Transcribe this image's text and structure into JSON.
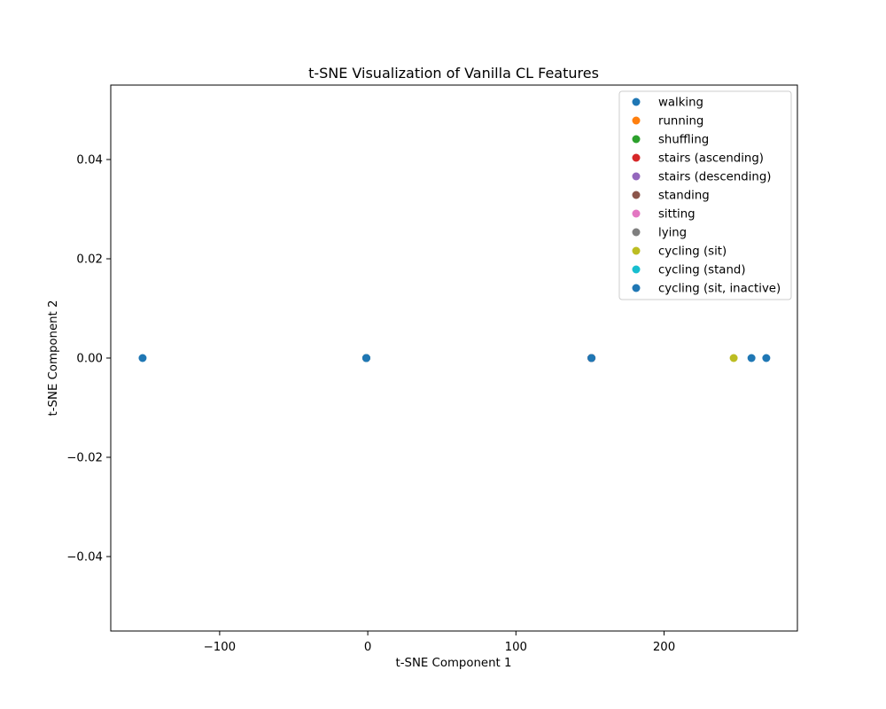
{
  "chart_data": {
    "type": "scatter",
    "title": "t-SNE Visualization of Vanilla CL Features",
    "xlabel": "t-SNE Component 1",
    "ylabel": "t-SNE Component 2",
    "xlim": [
      -173.5,
      290.0
    ],
    "ylim": [
      -0.055,
      0.055
    ],
    "xticks": [
      -100,
      0,
      100,
      200
    ],
    "xtick_labels": [
      "−100",
      "0",
      "100",
      "200"
    ],
    "yticks": [
      -0.04,
      -0.02,
      0.0,
      0.02,
      0.04
    ],
    "ytick_labels": [
      "−0.04",
      "−0.02",
      "0.00",
      "0.02",
      "0.04"
    ],
    "grid": false,
    "legend_position": "top-right",
    "series": [
      {
        "name": "walking",
        "color": "#1f77b4",
        "points": [
          [
            -152,
            0
          ],
          [
            -1,
            0
          ],
          [
            151,
            0
          ]
        ]
      },
      {
        "name": "running",
        "color": "#ff7f0e",
        "points": [
          [
            -1,
            0
          ],
          [
            151,
            0
          ]
        ]
      },
      {
        "name": "shuffling",
        "color": "#2ca02c",
        "points": [
          [
            -1,
            0
          ],
          [
            151,
            0
          ]
        ]
      },
      {
        "name": "stairs (ascending)",
        "color": "#d62728",
        "points": [
          [
            -1,
            0
          ],
          [
            151,
            0
          ]
        ]
      },
      {
        "name": "stairs (descending)",
        "color": "#9467bd",
        "points": [
          [
            -1,
            0
          ],
          [
            151,
            0
          ]
        ]
      },
      {
        "name": "standing",
        "color": "#8c564b",
        "points": [
          [
            -1,
            0
          ],
          [
            151,
            0
          ]
        ]
      },
      {
        "name": "sitting",
        "color": "#e377c2",
        "points": [
          [
            -1,
            0
          ],
          [
            151,
            0
          ]
        ]
      },
      {
        "name": "lying",
        "color": "#7f7f7f",
        "points": [
          [
            -1,
            0
          ],
          [
            151,
            0
          ]
        ]
      },
      {
        "name": "cycling (sit)",
        "color": "#bcbd22",
        "points": [
          [
            247,
            0
          ]
        ]
      },
      {
        "name": "cycling (stand)",
        "color": "#17becf",
        "points": [
          [
            -1,
            0
          ]
        ]
      },
      {
        "name": "cycling (sit, inactive)",
        "color": "#1f77b4",
        "points": [
          [
            -1,
            0
          ],
          [
            151,
            0
          ],
          [
            259,
            0
          ],
          [
            269,
            0
          ]
        ]
      }
    ]
  }
}
